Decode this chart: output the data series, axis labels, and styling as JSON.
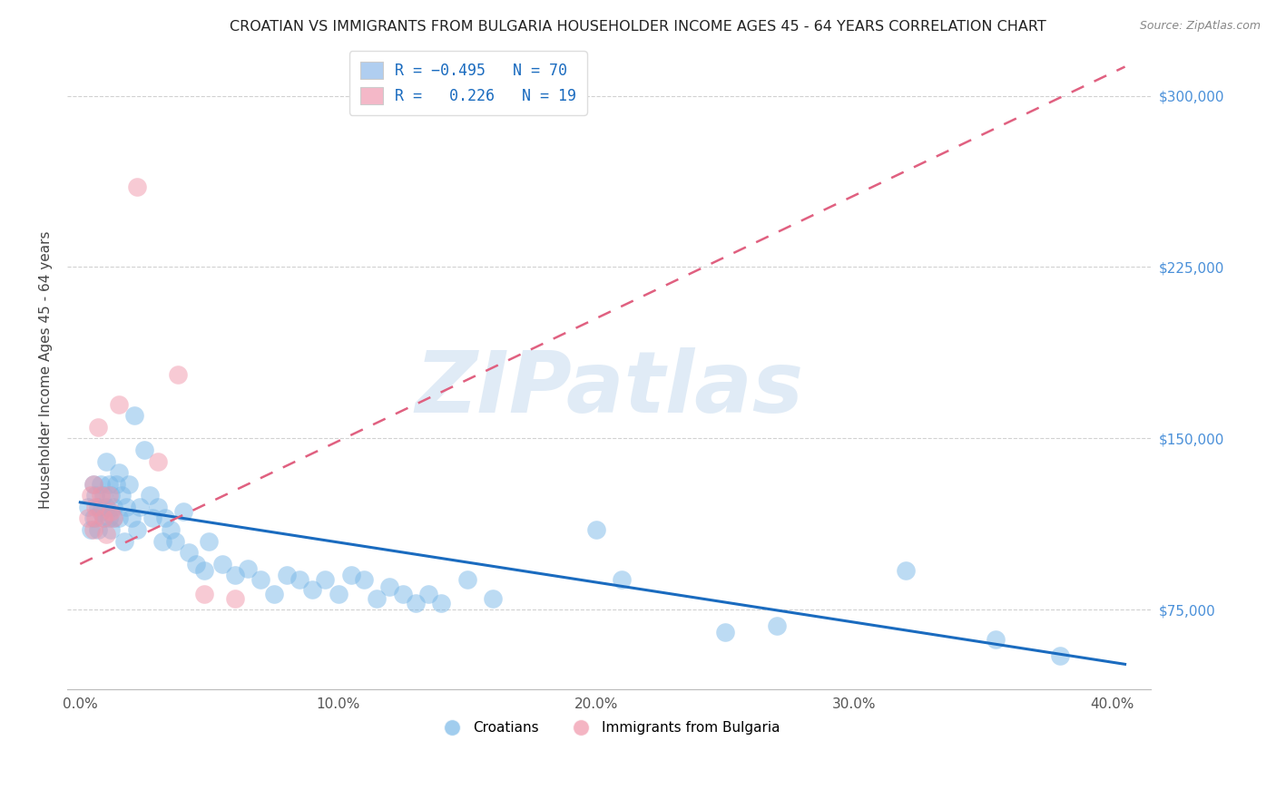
{
  "title": "CROATIAN VS IMMIGRANTS FROM BULGARIA HOUSEHOLDER INCOME AGES 45 - 64 YEARS CORRELATION CHART",
  "source": "Source: ZipAtlas.com",
  "ylabel": "Householder Income Ages 45 - 64 years",
  "watermark": "ZIPatlas",
  "blue_color": "#7ab8e8",
  "pink_color": "#f096aa",
  "blue_line_color": "#1a6bbf",
  "pink_line_color": "#e06080",
  "legend_color1": "#b0cef0",
  "legend_color2": "#f4b8c8",
  "legend_text_color": "#1a6bbf",
  "ytick_color": "#4a90d9",
  "title_color": "#222222",
  "source_color": "#888888",
  "grid_color": "#cccccc",
  "ylabel_color": "#444444",
  "xtick_vals": [
    0.0,
    0.1,
    0.2,
    0.3,
    0.4
  ],
  "xtick_labels": [
    "0.0%",
    "10.0%",
    "20.0%",
    "30.0%",
    "40.0%"
  ],
  "ytick_vals": [
    75000,
    150000,
    225000,
    300000
  ],
  "ytick_labels": [
    "$75,000",
    "$150,000",
    "$225,000",
    "$300,000"
  ],
  "xlim": [
    -0.005,
    0.415
  ],
  "ylim": [
    40000,
    320000
  ],
  "cat1_label": "Croatians",
  "cat2_label": "Immigrants from Bulgaria",
  "croatians_x": [
    0.003,
    0.004,
    0.005,
    0.005,
    0.006,
    0.007,
    0.007,
    0.008,
    0.008,
    0.009,
    0.009,
    0.01,
    0.01,
    0.011,
    0.011,
    0.012,
    0.012,
    0.013,
    0.013,
    0.014,
    0.015,
    0.015,
    0.016,
    0.017,
    0.018,
    0.019,
    0.02,
    0.021,
    0.022,
    0.023,
    0.025,
    0.027,
    0.028,
    0.03,
    0.032,
    0.033,
    0.035,
    0.037,
    0.04,
    0.042,
    0.045,
    0.048,
    0.05,
    0.055,
    0.06,
    0.065,
    0.07,
    0.075,
    0.08,
    0.085,
    0.09,
    0.095,
    0.1,
    0.105,
    0.11,
    0.115,
    0.12,
    0.125,
    0.13,
    0.135,
    0.14,
    0.15,
    0.16,
    0.2,
    0.21,
    0.25,
    0.27,
    0.32,
    0.355,
    0.38
  ],
  "croatians_y": [
    120000,
    110000,
    130000,
    115000,
    125000,
    120000,
    110000,
    130000,
    118000,
    125000,
    115000,
    140000,
    120000,
    115000,
    130000,
    110000,
    125000,
    120000,
    115000,
    130000,
    135000,
    115000,
    125000,
    105000,
    120000,
    130000,
    115000,
    160000,
    110000,
    120000,
    145000,
    125000,
    115000,
    120000,
    105000,
    115000,
    110000,
    105000,
    118000,
    100000,
    95000,
    92000,
    105000,
    95000,
    90000,
    93000,
    88000,
    82000,
    90000,
    88000,
    84000,
    88000,
    82000,
    90000,
    88000,
    80000,
    85000,
    82000,
    78000,
    82000,
    78000,
    88000,
    80000,
    110000,
    88000,
    65000,
    68000,
    92000,
    62000,
    55000
  ],
  "bulgaria_x": [
    0.003,
    0.004,
    0.005,
    0.005,
    0.006,
    0.006,
    0.007,
    0.008,
    0.009,
    0.01,
    0.011,
    0.012,
    0.013,
    0.015,
    0.022,
    0.03,
    0.038,
    0.048,
    0.06
  ],
  "bulgaria_y": [
    115000,
    125000,
    110000,
    130000,
    120000,
    115000,
    155000,
    125000,
    115000,
    108000,
    125000,
    118000,
    115000,
    165000,
    260000,
    140000,
    178000,
    82000,
    80000
  ],
  "blue_line_x0": 0.0,
  "blue_line_y0": 122000,
  "blue_line_x1": 0.4,
  "blue_line_y1": 52000,
  "pink_line_x0": 0.0,
  "pink_line_y0": 95000,
  "pink_line_x1": 0.4,
  "pink_line_y1": 310000
}
